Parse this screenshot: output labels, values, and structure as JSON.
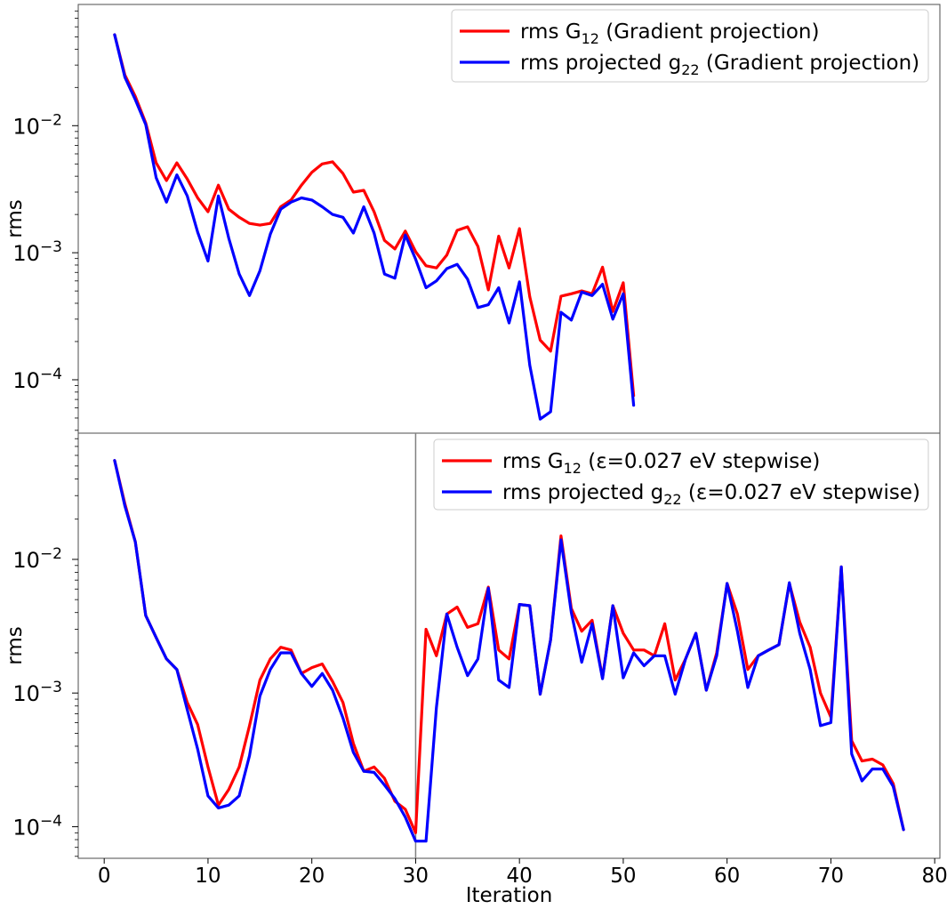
{
  "chart_data": [
    {
      "type": "line",
      "yscale": "log",
      "ylabel": "rms",
      "xlabel": "",
      "ylim": [
        3.8e-05,
        0.09
      ],
      "xlim": [
        -2.5,
        80.5
      ],
      "yticks": [
        {
          "value": 0.01,
          "base": "10",
          "exp": "−2"
        },
        {
          "value": 0.001,
          "base": "10",
          "exp": "−3"
        },
        {
          "value": 0.0001,
          "base": "10",
          "exp": "−4"
        }
      ],
      "legend_position": "top-right",
      "series": [
        {
          "name_main": "rms G",
          "name_sub": "12",
          "name_rest": " (Gradient projection)",
          "color": "#ff0000",
          "x": [
            1,
            2,
            3,
            4,
            5,
            6,
            7,
            8,
            9,
            10,
            11,
            12,
            13,
            14,
            15,
            16,
            17,
            18,
            19,
            20,
            21,
            22,
            23,
            24,
            25,
            26,
            27,
            28,
            29,
            30,
            31,
            32,
            33,
            34,
            35,
            36,
            37,
            38,
            39,
            40,
            41,
            42,
            43,
            44,
            45,
            46,
            47,
            48,
            49,
            50,
            51
          ],
          "y": [
            0.052,
            0.025,
            0.017,
            0.0105,
            0.0051,
            0.0037,
            0.0051,
            0.0038,
            0.0027,
            0.0021,
            0.0034,
            0.0022,
            0.0019,
            0.0017,
            0.00165,
            0.0017,
            0.0023,
            0.0026,
            0.0034,
            0.0043,
            0.005,
            0.0052,
            0.0042,
            0.003,
            0.0031,
            0.0021,
            0.00125,
            0.00107,
            0.00148,
            0.00102,
            0.00079,
            0.00076,
            0.00096,
            0.0015,
            0.0016,
            0.00112,
            0.00051,
            0.00135,
            0.00076,
            0.00155,
            0.00045,
            0.000205,
            0.000168,
            0.000455,
            0.000475,
            0.0005,
            0.000475,
            0.00077,
            0.000345,
            0.00058,
            7.5e-05
          ]
        },
        {
          "name_main": "rms projected g",
          "name_sub": "22",
          "name_rest": " (Gradient projection)",
          "color": "#0000ff",
          "x": [
            1,
            2,
            3,
            4,
            5,
            6,
            7,
            8,
            9,
            10,
            11,
            12,
            13,
            14,
            15,
            16,
            17,
            18,
            19,
            20,
            21,
            22,
            23,
            24,
            25,
            26,
            27,
            28,
            29,
            30,
            31,
            32,
            33,
            34,
            35,
            36,
            37,
            38,
            39,
            40,
            41,
            42,
            43,
            44,
            45,
            46,
            47,
            48,
            49,
            50,
            51
          ],
          "y": [
            0.052,
            0.024,
            0.016,
            0.0102,
            0.0039,
            0.0025,
            0.0041,
            0.0028,
            0.00145,
            0.00086,
            0.0028,
            0.0013,
            0.00068,
            0.00046,
            0.00072,
            0.0014,
            0.0022,
            0.0025,
            0.0027,
            0.0026,
            0.0023,
            0.002,
            0.0019,
            0.00143,
            0.0023,
            0.00143,
            0.00068,
            0.00063,
            0.00138,
            0.00089,
            0.00053,
            0.0006,
            0.00075,
            0.00081,
            0.00062,
            0.00037,
            0.00039,
            0.00053,
            0.00028,
            0.00059,
            0.00013,
            4.9e-05,
            5.6e-05,
            0.00034,
            0.000295,
            0.00049,
            0.00046,
            0.000565,
            0.0003,
            0.000475,
            6.3e-05
          ]
        }
      ]
    },
    {
      "type": "line",
      "yscale": "log",
      "ylabel": "rms",
      "xlabel": "Iteration",
      "ylim": [
        5.8e-05,
        0.088
      ],
      "xlim": [
        -2.5,
        80.5
      ],
      "xticks": [
        0,
        10,
        20,
        30,
        40,
        50,
        60,
        70,
        80
      ],
      "yticks": [
        {
          "value": 0.01,
          "base": "10",
          "exp": "−2"
        },
        {
          "value": 0.001,
          "base": "10",
          "exp": "−3"
        },
        {
          "value": 0.0001,
          "base": "10",
          "exp": "−4"
        }
      ],
      "vertical_line_x": 30,
      "legend_position": "top-right",
      "series": [
        {
          "name_main": "rms G",
          "name_sub": "12",
          "name_rest": " (ε=0.027 eV stepwise)",
          "color": "#ff0000",
          "x": [
            1,
            2,
            3,
            4,
            5,
            6,
            7,
            8,
            9,
            10,
            11,
            12,
            13,
            14,
            15,
            16,
            17,
            18,
            19,
            20,
            21,
            22,
            23,
            24,
            25,
            26,
            27,
            28,
            29,
            30,
            31,
            32,
            33,
            34,
            35,
            36,
            37,
            38,
            39,
            40,
            41,
            42,
            43,
            44,
            45,
            46,
            47,
            48,
            49,
            50,
            51,
            52,
            53,
            54,
            55,
            56,
            57,
            58,
            59,
            60,
            61,
            62,
            63,
            64,
            65,
            66,
            67,
            68,
            69,
            70,
            71,
            72,
            73,
            74,
            75,
            76,
            77
          ],
          "y": [
            0.055,
            0.026,
            0.0135,
            0.0038,
            0.0026,
            0.0018,
            0.0015,
            0.00085,
            0.00058,
            0.00028,
            0.000145,
            0.00019,
            0.00028,
            0.00057,
            0.00125,
            0.0018,
            0.0022,
            0.0021,
            0.0014,
            0.00155,
            0.00165,
            0.00122,
            0.00085,
            0.00042,
            0.00026,
            0.00028,
            0.00023,
            0.000155,
            0.000135,
            9e-05,
            0.003,
            0.0019,
            0.0039,
            0.0044,
            0.0031,
            0.0033,
            0.0062,
            0.0021,
            0.0018,
            0.0046,
            0.0045,
            0.00098,
            0.0025,
            0.015,
            0.0043,
            0.0029,
            0.0035,
            0.0013,
            0.0045,
            0.0028,
            0.0021,
            0.0021,
            0.0019,
            0.0033,
            0.00125,
            0.0018,
            0.0028,
            0.00105,
            0.002,
            0.0066,
            0.0039,
            0.0015,
            0.0019,
            0.0021,
            0.0023,
            0.0066,
            0.0034,
            0.0022,
            0.001,
            0.00066,
            0.0088,
            0.00044,
            0.00031,
            0.00032,
            0.00029,
            0.00021,
            9.5e-05
          ]
        },
        {
          "name_main": "rms projected g",
          "name_sub": "22",
          "name_rest": " (ε=0.027 eV stepwise)",
          "color": "#0000ff",
          "x": [
            1,
            2,
            3,
            4,
            5,
            6,
            7,
            8,
            9,
            10,
            11,
            12,
            13,
            14,
            15,
            16,
            17,
            18,
            19,
            20,
            21,
            22,
            23,
            24,
            25,
            26,
            27,
            28,
            29,
            30,
            31,
            32,
            33,
            34,
            35,
            36,
            37,
            38,
            39,
            40,
            41,
            42,
            43,
            44,
            45,
            46,
            47,
            48,
            49,
            50,
            51,
            52,
            53,
            54,
            55,
            56,
            57,
            58,
            59,
            60,
            61,
            62,
            63,
            64,
            65,
            66,
            67,
            68,
            69,
            70,
            71,
            72,
            73,
            74,
            75,
            76,
            77
          ],
          "y": [
            0.055,
            0.025,
            0.0135,
            0.0038,
            0.0026,
            0.0018,
            0.0015,
            0.00075,
            0.00038,
            0.00017,
            0.000138,
            0.000145,
            0.00017,
            0.00034,
            0.00095,
            0.0015,
            0.002,
            0.002,
            0.0014,
            0.00112,
            0.0014,
            0.00105,
            0.00065,
            0.00036,
            0.00026,
            0.000255,
            0.000205,
            0.000162,
            0.000118,
            7.8e-05,
            7.8e-05,
            0.00078,
            0.0039,
            0.0022,
            0.00135,
            0.0018,
            0.0061,
            0.00125,
            0.0011,
            0.0046,
            0.0045,
            0.00098,
            0.0025,
            0.014,
            0.004,
            0.0017,
            0.0033,
            0.00128,
            0.0045,
            0.0013,
            0.002,
            0.0016,
            0.0019,
            0.0019,
            0.00098,
            0.0018,
            0.0028,
            0.00105,
            0.0019,
            0.0066,
            0.0029,
            0.0011,
            0.0019,
            0.0021,
            0.0023,
            0.0067,
            0.0028,
            0.0015,
            0.00057,
            0.0006,
            0.0088,
            0.00035,
            0.00022,
            0.00027,
            0.00027,
            0.0002,
            9.5e-05
          ]
        }
      ]
    }
  ]
}
